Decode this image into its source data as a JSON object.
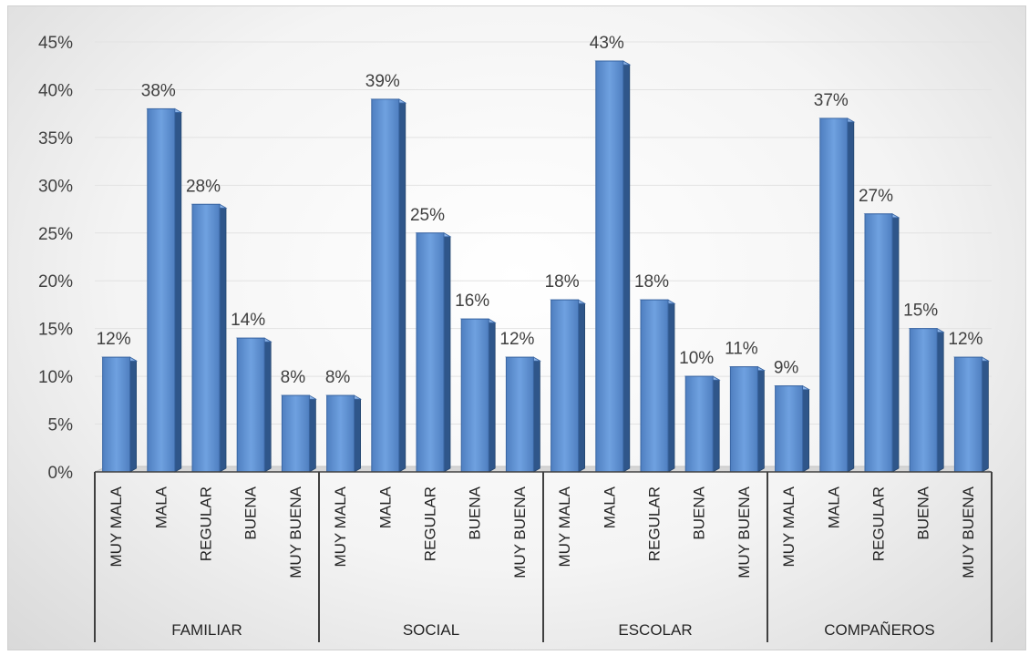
{
  "chart_data": {
    "type": "bar",
    "ylim": [
      0,
      45
    ],
    "ytick_step": 5,
    "ytick_format": "percent",
    "grid": true,
    "title": "",
    "xlabel": "",
    "ylabel": "",
    "groups": [
      {
        "name": "FAMILIAR",
        "categories": [
          "MUY MALA",
          "MALA",
          "REGULAR",
          "BUENA",
          "MUY BUENA"
        ],
        "values": [
          12,
          38,
          28,
          14,
          8
        ]
      },
      {
        "name": "SOCIAL",
        "categories": [
          "MUY MALA",
          "MALA",
          "REGULAR",
          "BUENA",
          "MUY BUENA"
        ],
        "values": [
          8,
          39,
          25,
          16,
          12
        ]
      },
      {
        "name": "ESCOLAR",
        "categories": [
          "MUY MALA",
          "MALA",
          "REGULAR",
          "BUENA",
          "MUY BUENA"
        ],
        "values": [
          18,
          43,
          18,
          10,
          11
        ]
      },
      {
        "name": "COMPAÑEROS",
        "categories": [
          "MUY MALA",
          "MALA",
          "REGULAR",
          "BUENA",
          "MUY BUENA"
        ],
        "values": [
          9,
          37,
          27,
          15,
          12
        ]
      }
    ],
    "bar_color": "#5b8fd0"
  }
}
